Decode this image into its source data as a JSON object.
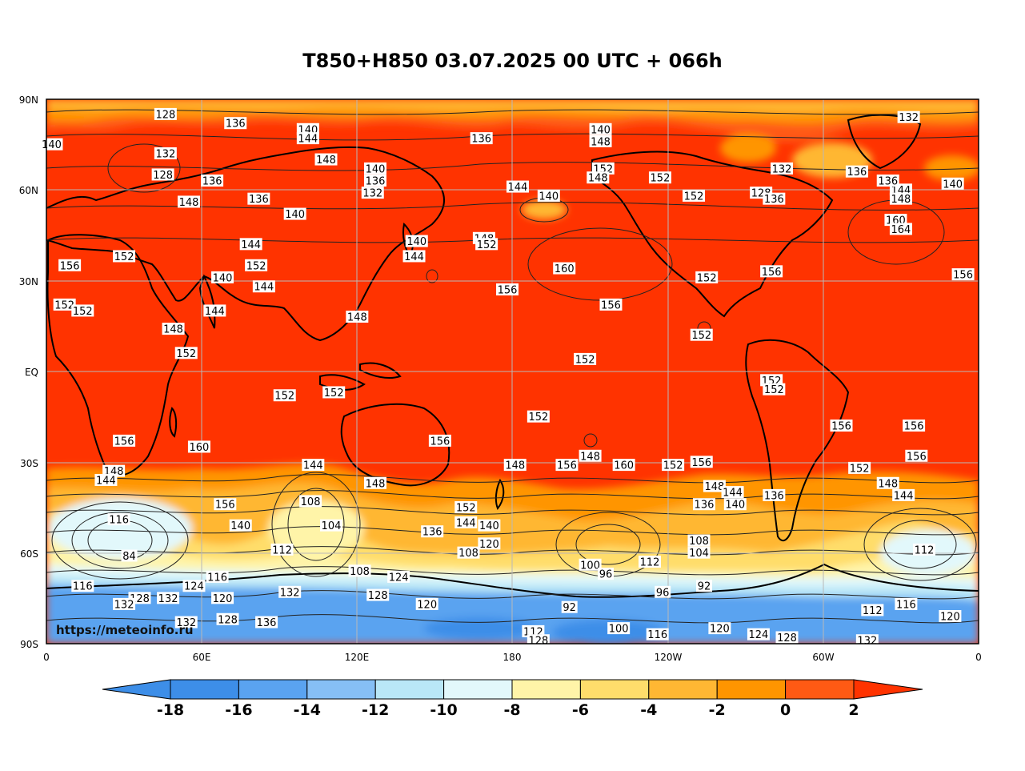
{
  "title": "T850+H850 03.07.2025 00 UTC + 066h",
  "source": "https://meteoinfo.ru",
  "axes": {
    "lat_ticks": [
      "90N",
      "60N",
      "30N",
      "EQ",
      "30S",
      "60S",
      "90S"
    ],
    "lon_ticks": [
      "0",
      "60E",
      "120E",
      "180",
      "120W",
      "60W",
      "0"
    ]
  },
  "colorbar": {
    "levels": [
      "-18",
      "-16",
      "-14",
      "-12",
      "-10",
      "-8",
      "-6",
      "-4",
      "-2",
      "0",
      "2"
    ],
    "colors": [
      "#3d8ee8",
      "#5aa3f0",
      "#86bff5",
      "#b9e7f7",
      "#e2f8fb",
      "#fff4a8",
      "#ffdd6b",
      "#ffb733",
      "#ff9500",
      "#ff5a14",
      "#ff3300"
    ]
  },
  "contour_labels": [
    {
      "v": "128",
      "lon": 46,
      "lat": 85
    },
    {
      "v": "136",
      "lon": 73,
      "lat": 82
    },
    {
      "v": "140",
      "lon": 101,
      "lat": 80
    },
    {
      "v": "144",
      "lon": 101,
      "lat": 77
    },
    {
      "v": "148",
      "lon": 108,
      "lat": 70
    },
    {
      "v": "136",
      "lon": 168,
      "lat": 77
    },
    {
      "v": "140",
      "lon": 214,
      "lat": 80
    },
    {
      "v": "148",
      "lon": 214,
      "lat": 76
    },
    {
      "v": "152",
      "lon": 215,
      "lat": 67
    },
    {
      "v": "148",
      "lon": 213,
      "lat": 64
    },
    {
      "v": "152",
      "lon": 237,
      "lat": 64
    },
    {
      "v": "132",
      "lon": 284,
      "lat": 67
    },
    {
      "v": "136",
      "lon": 313,
      "lat": 66
    },
    {
      "v": "140",
      "lon": 2,
      "lat": 75
    },
    {
      "v": "132",
      "lon": 46,
      "lat": 72
    },
    {
      "v": "128",
      "lon": 45,
      "lat": 65
    },
    {
      "v": "136",
      "lon": 64,
      "lat": 63
    },
    {
      "v": "148",
      "lon": 55,
      "lat": 56
    },
    {
      "v": "136",
      "lon": 82,
      "lat": 57
    },
    {
      "v": "140",
      "lon": 96,
      "lat": 52
    },
    {
      "v": "140",
      "lon": 127,
      "lat": 67
    },
    {
      "v": "136",
      "lon": 127,
      "lat": 63
    },
    {
      "v": "132",
      "lon": 126,
      "lat": 59
    },
    {
      "v": "144",
      "lon": 182,
      "lat": 61
    },
    {
      "v": "140",
      "lon": 194,
      "lat": 58
    },
    {
      "v": "152",
      "lon": 250,
      "lat": 58
    },
    {
      "v": "128",
      "lon": 276,
      "lat": 59
    },
    {
      "v": "136",
      "lon": 281,
      "lat": 57
    },
    {
      "v": "144",
      "lon": 330,
      "lat": 60
    },
    {
      "v": "148",
      "lon": 330,
      "lat": 57
    },
    {
      "v": "160",
      "lon": 328,
      "lat": 50
    },
    {
      "v": "164",
      "lon": 330,
      "lat": 47
    },
    {
      "v": "144",
      "lon": 79,
      "lat": 42
    },
    {
      "v": "152",
      "lon": 81,
      "lat": 35
    },
    {
      "v": "140",
      "lon": 143,
      "lat": 43
    },
    {
      "v": "144",
      "lon": 142,
      "lat": 38
    },
    {
      "v": "148",
      "lon": 169,
      "lat": 44
    },
    {
      "v": "152",
      "lon": 170,
      "lat": 42
    },
    {
      "v": "160",
      "lon": 200,
      "lat": 34
    },
    {
      "v": "156",
      "lon": 178,
      "lat": 27
    },
    {
      "v": "156",
      "lon": 218,
      "lat": 22
    },
    {
      "v": "152",
      "lon": 255,
      "lat": 31
    },
    {
      "v": "156",
      "lon": 280,
      "lat": 33
    },
    {
      "v": "156",
      "lon": 354,
      "lat": 32
    },
    {
      "v": "156",
      "lon": 9,
      "lat": 35
    },
    {
      "v": "152",
      "lon": 30,
      "lat": 38
    },
    {
      "v": "140",
      "lon": 68,
      "lat": 31
    },
    {
      "v": "144",
      "lon": 84,
      "lat": 28
    },
    {
      "v": "152",
      "lon": 7,
      "lat": 22
    },
    {
      "v": "152",
      "lon": 14,
      "lat": 20
    },
    {
      "v": "144",
      "lon": 65,
      "lat": 20
    },
    {
      "v": "148",
      "lon": 49,
      "lat": 14
    },
    {
      "v": "148",
      "lon": 120,
      "lat": 18
    },
    {
      "v": "152",
      "lon": 54,
      "lat": 6
    },
    {
      "v": "152",
      "lon": 253,
      "lat": 12
    },
    {
      "v": "152",
      "lon": 208,
      "lat": 4
    },
    {
      "v": "152",
      "lon": 280,
      "lat": -3
    },
    {
      "v": "152",
      "lon": 281,
      "lat": -6
    },
    {
      "v": "152",
      "lon": 92,
      "lat": -8
    },
    {
      "v": "152",
      "lon": 111,
      "lat": -7
    },
    {
      "v": "152",
      "lon": 190,
      "lat": -15
    },
    {
      "v": "156",
      "lon": 30,
      "lat": -23
    },
    {
      "v": "160",
      "lon": 59,
      "lat": -25
    },
    {
      "v": "156",
      "lon": 152,
      "lat": -23
    },
    {
      "v": "156",
      "lon": 307,
      "lat": -18
    },
    {
      "v": "156",
      "lon": 335,
      "lat": -18
    },
    {
      "v": "148",
      "lon": 26,
      "lat": -33
    },
    {
      "v": "144",
      "lon": 23,
      "lat": -36
    },
    {
      "v": "144",
      "lon": 103,
      "lat": -31
    },
    {
      "v": "148",
      "lon": 127,
      "lat": -37
    },
    {
      "v": "148",
      "lon": 181,
      "lat": -31
    },
    {
      "v": "156",
      "lon": 201,
      "lat": -31
    },
    {
      "v": "148",
      "lon": 210,
      "lat": -28
    },
    {
      "v": "160",
      "lon": 223,
      "lat": -31
    },
    {
      "v": "152",
      "lon": 242,
      "lat": -31
    },
    {
      "v": "156",
      "lon": 253,
      "lat": -30
    },
    {
      "v": "152",
      "lon": 314,
      "lat": -32
    },
    {
      "v": "148",
      "lon": 325,
      "lat": -37
    },
    {
      "v": "144",
      "lon": 331,
      "lat": -41
    },
    {
      "v": "148",
      "lon": 258,
      "lat": -38
    },
    {
      "v": "144",
      "lon": 265,
      "lat": -40
    },
    {
      "v": "140",
      "lon": 266,
      "lat": -44
    },
    {
      "v": "136",
      "lon": 281,
      "lat": -41
    },
    {
      "v": "136",
      "lon": 254,
      "lat": -44
    },
    {
      "v": "156",
      "lon": 69,
      "lat": -44
    },
    {
      "v": "116",
      "lon": 28,
      "lat": -49
    },
    {
      "v": "84",
      "lon": 32,
      "lat": -61
    },
    {
      "v": "108",
      "lon": 102,
      "lat": -43
    },
    {
      "v": "104",
      "lon": 110,
      "lat": -51
    },
    {
      "v": "152",
      "lon": 162,
      "lat": -45
    },
    {
      "v": "144",
      "lon": 162,
      "lat": -50
    },
    {
      "v": "140",
      "lon": 171,
      "lat": -51
    },
    {
      "v": "140",
      "lon": 75,
      "lat": -51
    },
    {
      "v": "136",
      "lon": 149,
      "lat": -53
    },
    {
      "v": "120",
      "lon": 171,
      "lat": -57
    },
    {
      "v": "108",
      "lon": 163,
      "lat": -60
    },
    {
      "v": "112",
      "lon": 91,
      "lat": -59
    },
    {
      "v": "108",
      "lon": 252,
      "lat": -56
    },
    {
      "v": "104",
      "lon": 252,
      "lat": -60
    },
    {
      "v": "112",
      "lon": 233,
      "lat": -63
    },
    {
      "v": "100",
      "lon": 210,
      "lat": -64
    },
    {
      "v": "96",
      "lon": 216,
      "lat": -67
    },
    {
      "v": "96",
      "lon": 238,
      "lat": -73
    },
    {
      "v": "92",
      "lon": 254,
      "lat": -71
    },
    {
      "v": "112",
      "lon": 339,
      "lat": -59
    },
    {
      "v": "116",
      "lon": 14,
      "lat": -71
    },
    {
      "v": "128",
      "lon": 36,
      "lat": -75
    },
    {
      "v": "132",
      "lon": 47,
      "lat": -75
    },
    {
      "v": "132",
      "lon": 30,
      "lat": -77
    },
    {
      "v": "124",
      "lon": 57,
      "lat": -71
    },
    {
      "v": "116",
      "lon": 66,
      "lat": -68
    },
    {
      "v": "120",
      "lon": 68,
      "lat": -75
    },
    {
      "v": "132",
      "lon": 94,
      "lat": -73
    },
    {
      "v": "128",
      "lon": 128,
      "lat": -74
    },
    {
      "v": "120",
      "lon": 147,
      "lat": -77
    },
    {
      "v": "108",
      "lon": 121,
      "lat": -66
    },
    {
      "v": "124",
      "lon": 136,
      "lat": -68
    },
    {
      "v": "92",
      "lon": 202,
      "lat": -78
    },
    {
      "v": "132",
      "lon": 54,
      "lat": -83
    },
    {
      "v": "128",
      "lon": 70,
      "lat": -82
    },
    {
      "v": "136",
      "lon": 85,
      "lat": -83
    },
    {
      "v": "100",
      "lon": 221,
      "lat": -85
    },
    {
      "v": "112",
      "lon": 188,
      "lat": -86
    },
    {
      "v": "128",
      "lon": 190,
      "lat": -89
    },
    {
      "v": "116",
      "lon": 236,
      "lat": -87
    },
    {
      "v": "120",
      "lon": 260,
      "lat": -85
    },
    {
      "v": "124",
      "lon": 275,
      "lat": -87
    },
    {
      "v": "128",
      "lon": 286,
      "lat": -88
    },
    {
      "v": "132",
      "lon": 317,
      "lat": -89
    },
    {
      "v": "112",
      "lon": 319,
      "lat": -79
    },
    {
      "v": "116",
      "lon": 332,
      "lat": -77
    },
    {
      "v": "120",
      "lon": 349,
      "lat": -81
    },
    {
      "v": "132",
      "lon": 333,
      "lat": 84
    },
    {
      "v": "140",
      "lon": 350,
      "lat": 62
    },
    {
      "v": "136",
      "lon": 325,
      "lat": 63
    },
    {
      "v": "156",
      "lon": 336,
      "lat": -28
    }
  ]
}
